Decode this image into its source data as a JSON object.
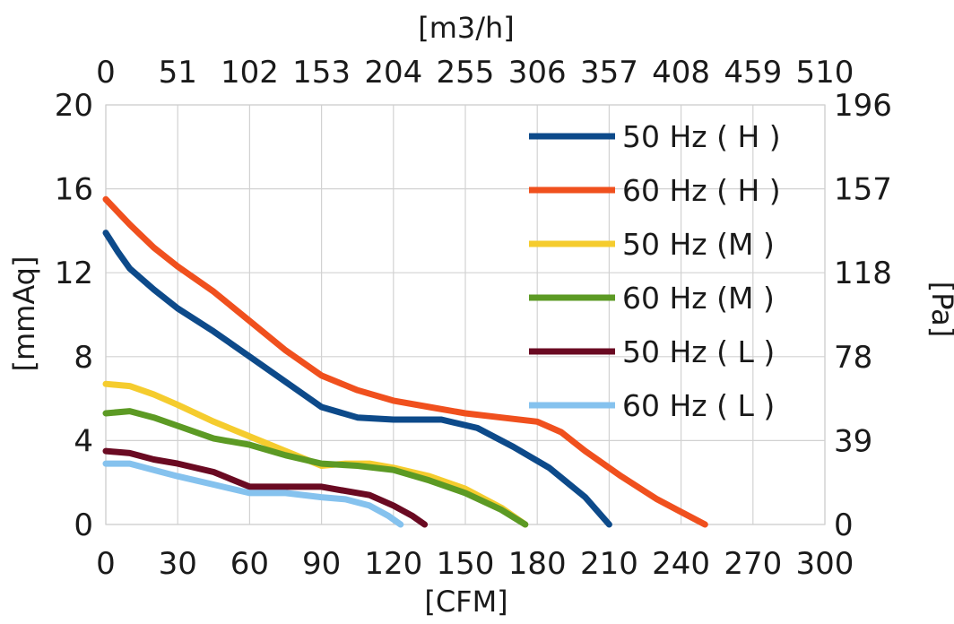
{
  "chart_data": {
    "type": "line",
    "title": "",
    "xlabel": "[CFM]",
    "x2label": "[m3/h]",
    "ylabel": "[mmAq]",
    "y2label": "[Pa]",
    "xlim": [
      0,
      300
    ],
    "ylim": [
      0,
      20
    ],
    "grid": true,
    "legend_position": "top-right",
    "x_ticks": [
      0,
      30,
      60,
      90,
      120,
      150,
      180,
      210,
      240,
      270,
      300
    ],
    "x_tick_labels": [
      "0",
      "30",
      "60",
      "90",
      "120",
      "150",
      "180",
      "210",
      "240",
      "270",
      "300"
    ],
    "x2_tick_labels": [
      "0",
      "51",
      "102",
      "153",
      "204",
      "255",
      "306",
      "357",
      "408",
      "459",
      "510"
    ],
    "y_ticks": [
      0,
      4,
      8,
      12,
      16,
      20
    ],
    "y_tick_labels": [
      "0",
      "4",
      "8",
      "12",
      "16",
      "20"
    ],
    "y2_tick_labels": [
      "0",
      "39",
      "78",
      "118",
      "157",
      "196"
    ],
    "series": [
      {
        "name": "50 Hz ( H )",
        "color": "#0d4a8a",
        "points": [
          [
            0,
            13.9
          ],
          [
            5,
            13.0
          ],
          [
            10,
            12.2
          ],
          [
            20,
            11.2
          ],
          [
            30,
            10.3
          ],
          [
            45,
            9.2
          ],
          [
            60,
            8.0
          ],
          [
            75,
            6.8
          ],
          [
            90,
            5.6
          ],
          [
            105,
            5.1
          ],
          [
            120,
            5.0
          ],
          [
            140,
            5.0
          ],
          [
            155,
            4.6
          ],
          [
            170,
            3.7
          ],
          [
            185,
            2.7
          ],
          [
            200,
            1.3
          ],
          [
            210,
            0.0
          ]
        ]
      },
      {
        "name": "60 Hz ( H )",
        "color": "#f0501e",
        "points": [
          [
            0,
            15.5
          ],
          [
            10,
            14.3
          ],
          [
            20,
            13.2
          ],
          [
            30,
            12.3
          ],
          [
            45,
            11.1
          ],
          [
            60,
            9.7
          ],
          [
            75,
            8.3
          ],
          [
            90,
            7.1
          ],
          [
            105,
            6.4
          ],
          [
            120,
            5.9
          ],
          [
            135,
            5.6
          ],
          [
            150,
            5.3
          ],
          [
            165,
            5.1
          ],
          [
            180,
            4.9
          ],
          [
            190,
            4.4
          ],
          [
            200,
            3.5
          ],
          [
            215,
            2.3
          ],
          [
            230,
            1.2
          ],
          [
            240,
            0.6
          ],
          [
            250,
            0.0
          ]
        ]
      },
      {
        "name": "50 Hz (M )",
        "color": "#f5cc2e",
        "points": [
          [
            0,
            6.7
          ],
          [
            10,
            6.6
          ],
          [
            20,
            6.2
          ],
          [
            30,
            5.7
          ],
          [
            45,
            4.9
          ],
          [
            60,
            4.2
          ],
          [
            75,
            3.5
          ],
          [
            90,
            2.8
          ],
          [
            100,
            2.9
          ],
          [
            110,
            2.9
          ],
          [
            120,
            2.7
          ],
          [
            135,
            2.3
          ],
          [
            150,
            1.7
          ],
          [
            165,
            0.8
          ],
          [
            175,
            0.0
          ]
        ]
      },
      {
        "name": "60 Hz (M )",
        "color": "#5c9a24",
        "points": [
          [
            0,
            5.3
          ],
          [
            10,
            5.4
          ],
          [
            20,
            5.1
          ],
          [
            30,
            4.7
          ],
          [
            45,
            4.1
          ],
          [
            60,
            3.8
          ],
          [
            75,
            3.3
          ],
          [
            90,
            2.9
          ],
          [
            105,
            2.8
          ],
          [
            120,
            2.6
          ],
          [
            135,
            2.1
          ],
          [
            150,
            1.5
          ],
          [
            165,
            0.7
          ],
          [
            175,
            0.0
          ]
        ]
      },
      {
        "name": "50 Hz ( L )",
        "color": "#6a0a22",
        "points": [
          [
            0,
            3.5
          ],
          [
            10,
            3.4
          ],
          [
            20,
            3.1
          ],
          [
            30,
            2.9
          ],
          [
            45,
            2.5
          ],
          [
            60,
            1.8
          ],
          [
            75,
            1.8
          ],
          [
            90,
            1.8
          ],
          [
            100,
            1.6
          ],
          [
            110,
            1.4
          ],
          [
            120,
            0.9
          ],
          [
            128,
            0.4
          ],
          [
            133,
            0.0
          ]
        ]
      },
      {
        "name": "60 Hz ( L )",
        "color": "#85c2ee",
        "points": [
          [
            0,
            2.9
          ],
          [
            10,
            2.9
          ],
          [
            20,
            2.6
          ],
          [
            30,
            2.3
          ],
          [
            45,
            1.9
          ],
          [
            60,
            1.5
          ],
          [
            75,
            1.5
          ],
          [
            90,
            1.3
          ],
          [
            100,
            1.2
          ],
          [
            110,
            0.9
          ],
          [
            118,
            0.4
          ],
          [
            123,
            0.0
          ]
        ]
      }
    ]
  }
}
